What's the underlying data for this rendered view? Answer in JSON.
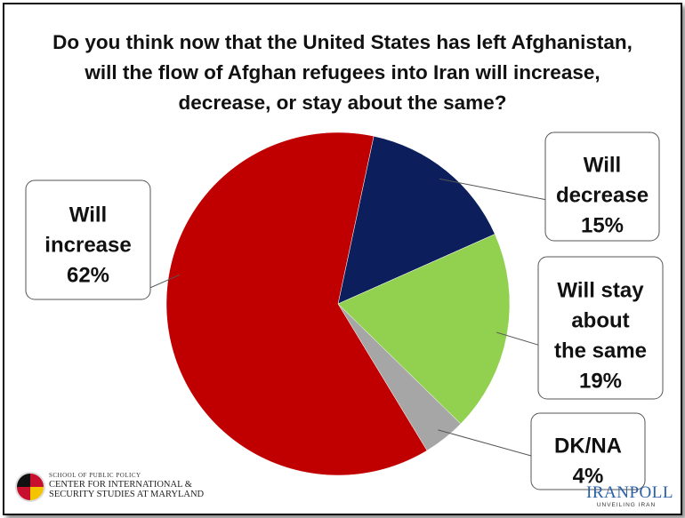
{
  "title_lines": [
    "Do you think now that the United States has left Afghanistan,",
    "will the flow of Afghan refugees into Iran will increase,",
    "decrease, or stay about the same?"
  ],
  "chart_data": {
    "type": "pie",
    "title": "Do you think now that the United States has left Afghanistan, will the flow of Afghan refugees into Iran will increase, decrease, or stay about the same?",
    "slices": [
      {
        "label": "Will increase",
        "value": 62,
        "value_label": "62%",
        "color": "#c00000",
        "label_lines": [
          "Will",
          "increase",
          "62%"
        ]
      },
      {
        "label": "Will decrease",
        "value": 15,
        "value_label": "15%",
        "color": "#0c1f5c",
        "label_lines": [
          "Will",
          "decrease",
          "15%"
        ]
      },
      {
        "label": "Will stay about the same",
        "value": 19,
        "value_label": "19%",
        "color": "#92d050",
        "label_lines": [
          "Will stay",
          "about",
          "the same",
          "19%"
        ]
      },
      {
        "label": "DK/NA",
        "value": 4,
        "value_label": "4%",
        "color": "#a6a6a6",
        "label_lines": [
          "DK/NA",
          "4%"
        ]
      }
    ]
  },
  "logos": {
    "umd_small": "SCHOOL OF PUBLIC POLICY",
    "umd_line1": "CENTER FOR INTERNATIONAL &",
    "umd_line2": "SECURITY STUDIES AT MARYLAND",
    "iranpoll_name": "IRANPOLL",
    "iranpoll_tagline": "UNVEILING IRAN"
  }
}
